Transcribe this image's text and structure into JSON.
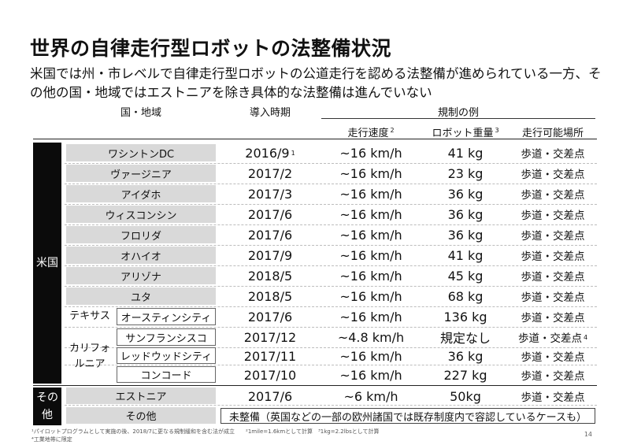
{
  "title": "世界の自律走行型ロボットの法整備状況",
  "subtitle": {
    "line1": "米国では州・市レベルで自律走行型ロボットの公道走行を認める法整備が進められている一方、そ",
    "line2": "の他の国・地域ではエストニアを除き具体的な法整備は進んでいない"
  },
  "headers": {
    "region": "国・地域",
    "date": "導入時期",
    "rules": "規制の例",
    "speed": "走行速度",
    "speed_note": "2",
    "weight": "ロボット重量",
    "weight_note": "3",
    "place": "走行可能場所"
  },
  "groups": {
    "us": "米国",
    "other_l1": "その",
    "other_l2": "他",
    "texas": "テキサス",
    "cal_l1": "カリフォ",
    "cal_l2": "ルニア"
  },
  "rows": [
    {
      "region": "ワシントンDC",
      "date": "2016/9",
      "date_note": "1",
      "speed": "~16 km/h",
      "weight": "41 kg",
      "place": "歩道・交差点"
    },
    {
      "region": "ヴァージニア",
      "date": "2017/2",
      "speed": "~16 km/h",
      "weight": "23 kg",
      "place": "歩道・交差点"
    },
    {
      "region": "アイダホ",
      "date": "2017/3",
      "speed": "~16 km/h",
      "weight": "36 kg",
      "place": "歩道・交差点"
    },
    {
      "region": "ウィスコンシン",
      "date": "2017/6",
      "speed": "~16 km/h",
      "weight": "36 kg",
      "place": "歩道・交差点"
    },
    {
      "region": "フロリダ",
      "date": "2017/6",
      "speed": "~16 km/h",
      "weight": "36 kg",
      "place": "歩道・交差点"
    },
    {
      "region": "オハイオ",
      "date": "2017/9",
      "speed": "~16 km/h",
      "weight": "41 kg",
      "place": "歩道・交差点"
    },
    {
      "region": "アリゾナ",
      "date": "2018/5",
      "speed": "~16 km/h",
      "weight": "45 kg",
      "place": "歩道・交差点"
    },
    {
      "region": "ユタ",
      "date": "2018/5",
      "speed": "~16 km/h",
      "weight": "68 kg",
      "place": "歩道・交差点"
    },
    {
      "region": "オースティンシティ",
      "date": "2017/6",
      "speed": "~16 km/h",
      "weight": "136 kg",
      "place": "歩道・交差点"
    },
    {
      "region": "サンフランシスコ",
      "date": "2017/12",
      "speed": "~4.8 km/h",
      "weight": "規定なし",
      "place": "歩道・交差点",
      "place_note": "4"
    },
    {
      "region": "レッドウッドシティ",
      "date": "2017/11",
      "speed": "~16 km/h",
      "weight": "36 kg",
      "place": "歩道・交差点"
    },
    {
      "region": "コンコード",
      "date": "2017/10",
      "speed": "~16 km/h",
      "weight": "227 kg",
      "place": "歩道・交差点"
    },
    {
      "region": "エストニア",
      "date": "2017/6",
      "speed": "~6 km/h",
      "weight": "50kg",
      "place": "歩道・交差点"
    },
    {
      "region": "その他",
      "unregulated": "未整備（英国などの一部の欧州諸国では既存制度内で容認しているケースも）"
    }
  ],
  "footnotes": {
    "line1": "¹パイロットプログラムとして実施の後、2018/7に更なる規制緩和を含む法が成立　　²1mile=1.6kmとして計算　³1kg=2.2lbsとして計算",
    "line2": "⁴工業地帯に限定"
  },
  "page_number": "14"
}
